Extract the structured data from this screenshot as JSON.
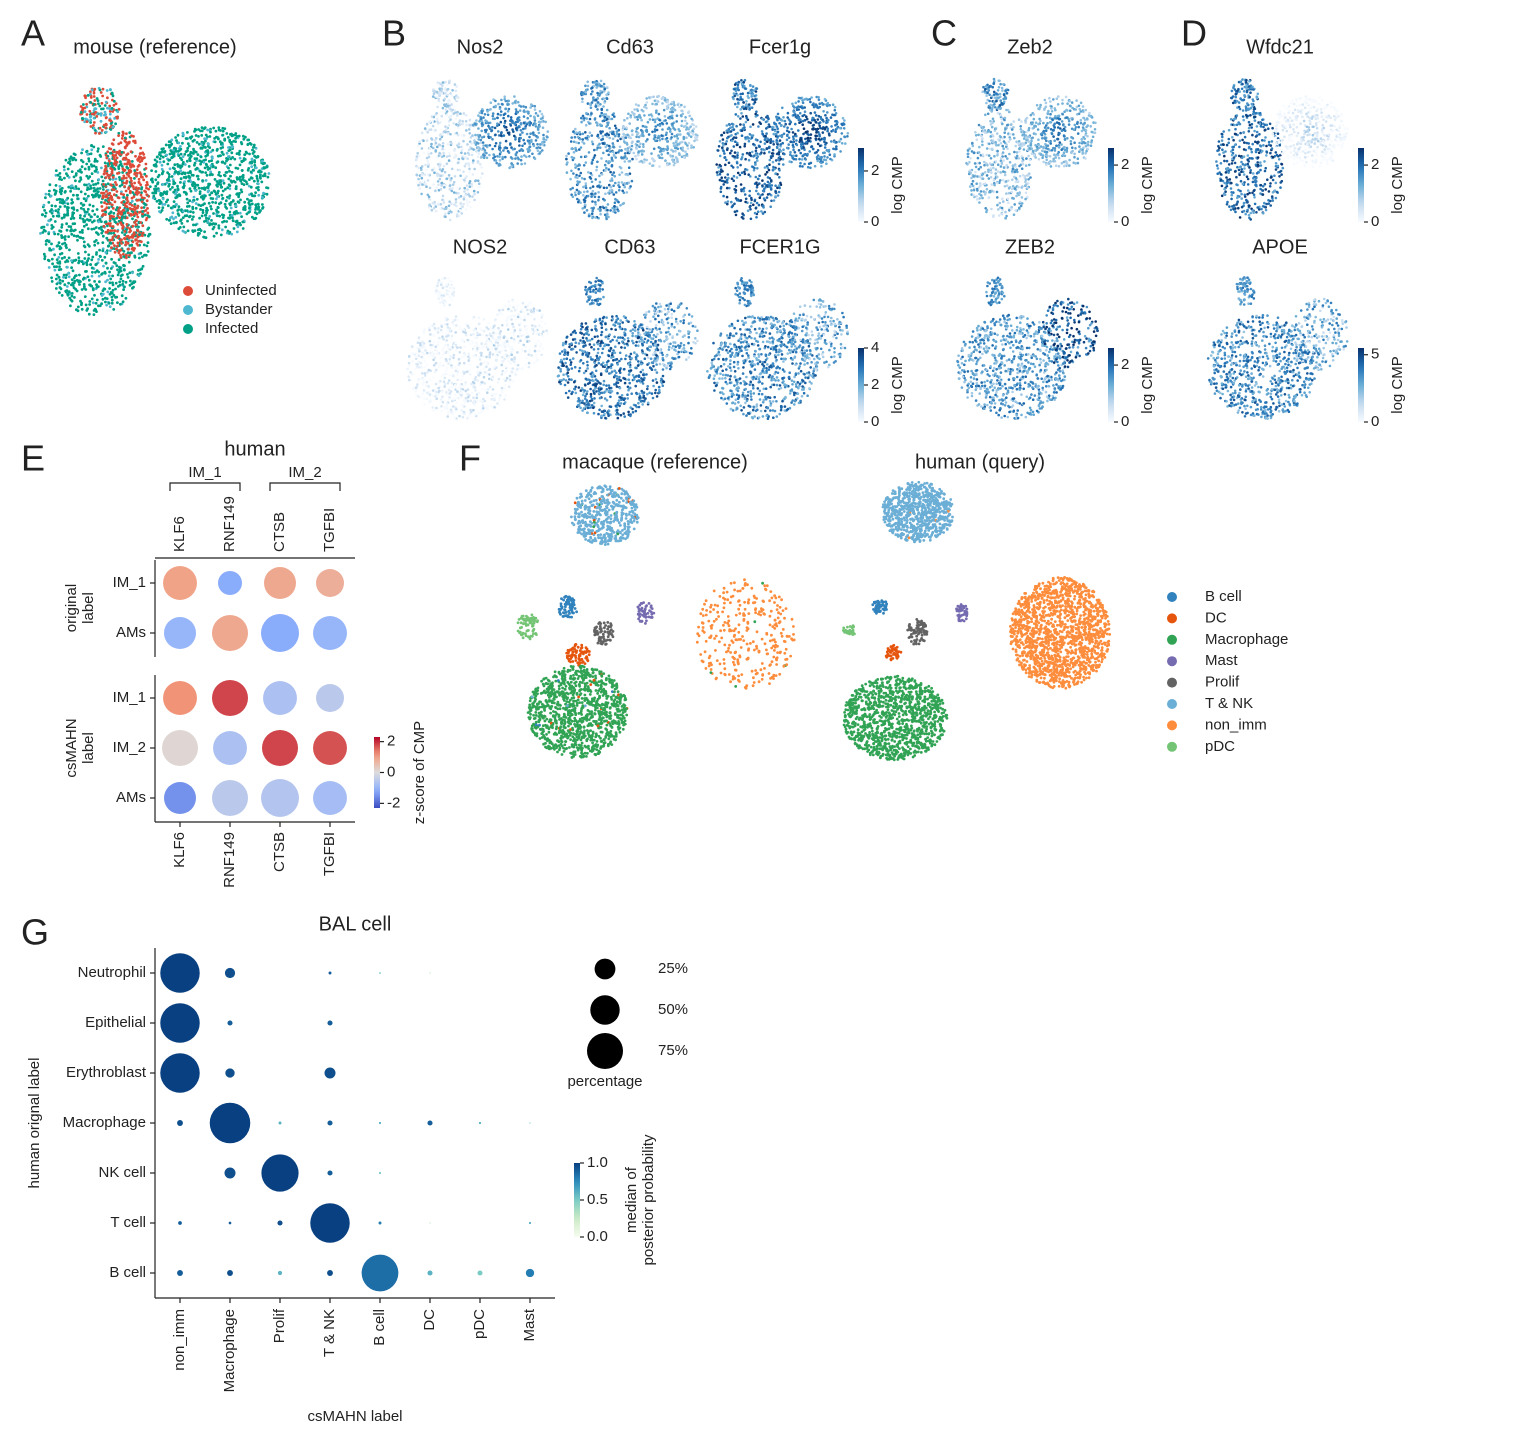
{
  "panel_A": {
    "letter": "A",
    "title": "mouse (reference)",
    "legend": [
      {
        "name": "Uninfected",
        "color": "#dd4b39"
      },
      {
        "name": "Bystander",
        "color": "#4db8d0"
      },
      {
        "name": "Infected",
        "color": "#00a087"
      }
    ]
  },
  "panel_B": {
    "letter": "B",
    "mouse_genes": [
      "Nos2",
      "Cd63",
      "Fcer1g"
    ],
    "human_genes": [
      "NOS2",
      "CD63",
      "FCER1G"
    ],
    "mouse_colorbar": {
      "label": "log CMP",
      "lim": [
        0,
        2.9
      ],
      "ticks": [
        0,
        2
      ]
    },
    "human_colorbar": {
      "label": "log CMP",
      "lim": [
        0,
        4
      ],
      "ticks": [
        0,
        2,
        4
      ]
    }
  },
  "panel_C": {
    "letter": "C",
    "mouse_genes": [
      "Zeb2"
    ],
    "human_genes": [
      "ZEB2"
    ],
    "mouse_colorbar": {
      "label": "log CMP",
      "lim": [
        0,
        2.6
      ],
      "ticks": [
        0,
        2
      ]
    },
    "human_colorbar": {
      "label": "log CMP",
      "lim": [
        0,
        2.6
      ],
      "ticks": [
        0,
        2
      ]
    }
  },
  "panel_D": {
    "letter": "D",
    "mouse_genes": [
      "Wfdc21"
    ],
    "human_genes": [
      "APOE"
    ],
    "mouse_colorbar": {
      "label": "log CMP",
      "lim": [
        0,
        2.6
      ],
      "ticks": [
        0,
        2
      ]
    },
    "human_colorbar": {
      "label": "log CMP",
      "lim": [
        0,
        5.5
      ],
      "ticks": [
        0,
        5
      ]
    }
  },
  "panel_E": {
    "letter": "E",
    "title": "human",
    "gene_groups": [
      "IM_1",
      "IM_2"
    ],
    "genes": [
      "KLF6",
      "RNF149",
      "CTSB",
      "TGFBI"
    ],
    "row_groups": [
      {
        "label": [
          "original",
          "label"
        ],
        "rows": [
          "IM_1",
          "AMs"
        ],
        "zscore": [
          [
            1.0,
            -1.2,
            0.9,
            0.8
          ],
          [
            -1.0,
            0.9,
            -1.2,
            -1.0
          ]
        ],
        "fraction": [
          [
            0.72,
            0.36,
            0.64,
            0.49
          ],
          [
            0.64,
            0.81,
            0.9,
            0.72
          ]
        ]
      },
      {
        "label": [
          "csMAHN",
          "label"
        ],
        "rows": [
          "IM_1",
          "IM_2",
          "AMs"
        ],
        "zscore": [
          [
            1.2,
            1.8,
            -0.7,
            -0.5
          ],
          [
            0.1,
            -0.7,
            1.8,
            1.7
          ],
          [
            -1.5,
            -0.5,
            -0.6,
            -0.8
          ]
        ],
        "fraction": [
          [
            0.72,
            0.81,
            0.72,
            0.49
          ],
          [
            0.81,
            0.72,
            0.81,
            0.72
          ],
          [
            0.64,
            0.81,
            0.9,
            0.72
          ]
        ]
      }
    ],
    "colorbar": {
      "label": "z-score of CMP",
      "lim": [
        -2.3,
        2.3
      ],
      "ticks": [
        -2,
        0,
        2
      ]
    }
  },
  "panel_F": {
    "letter": "F",
    "titles": [
      "macaque (reference)",
      "human (query)"
    ],
    "legend": [
      {
        "name": "B cell",
        "color": "#3182bd"
      },
      {
        "name": "DC",
        "color": "#e6550d"
      },
      {
        "name": "Macrophage",
        "color": "#31a354"
      },
      {
        "name": "Mast",
        "color": "#756bb1"
      },
      {
        "name": "Prolif",
        "color": "#636363"
      },
      {
        "name": "T & NK",
        "color": "#6baed6"
      },
      {
        "name": "non_imm",
        "color": "#fd8d3c"
      },
      {
        "name": "pDC",
        "color": "#74c476"
      }
    ]
  },
  "panel_G": {
    "letter": "G",
    "title": "BAL cell",
    "x_label": "csMAHN label",
    "y_label": "human orignal label",
    "columns": [
      "non_imm",
      "Macrophage",
      "Prolif",
      "T & NK",
      "B cell",
      "DC",
      "pDC",
      "Mast"
    ],
    "rows": [
      "Neutrophil",
      "Epithelial",
      "Erythroblast",
      "Macrophage",
      "NK cell",
      "T cell",
      "B cell"
    ],
    "percentage": [
      [
        90,
        6,
        0,
        0.5,
        0.2,
        0.1,
        0,
        0
      ],
      [
        90,
        1.5,
        0,
        1.5,
        0,
        0,
        0,
        0
      ],
      [
        90,
        5,
        0,
        7,
        0,
        0,
        0,
        0
      ],
      [
        2,
        95,
        0.5,
        1.5,
        0.3,
        1.5,
        0.3,
        0.1
      ],
      [
        0,
        7,
        80,
        1.5,
        0.3,
        0,
        0,
        0
      ],
      [
        0.8,
        0.4,
        1.5,
        90,
        0.5,
        0.1,
        0,
        0.3
      ],
      [
        2,
        2,
        1,
        2,
        78,
        1.5,
        1.5,
        4
      ]
    ],
    "probability": [
      [
        1,
        0.95,
        0,
        0.9,
        0.5,
        0.3,
        0,
        0
      ],
      [
        1,
        0.9,
        0,
        0.9,
        0,
        0,
        0,
        0
      ],
      [
        1,
        0.95,
        0,
        0.95,
        0,
        0,
        0,
        0
      ],
      [
        0.95,
        1,
        0.6,
        0.9,
        0.6,
        0.9,
        0.6,
        0.5
      ],
      [
        0,
        0.95,
        1,
        0.9,
        0.5,
        0,
        0,
        0
      ],
      [
        0.9,
        0.9,
        0.95,
        1,
        0.8,
        0.3,
        0,
        0.6
      ],
      [
        0.9,
        0.95,
        0.6,
        0.95,
        0.85,
        0.6,
        0.5,
        0.8
      ]
    ],
    "size_legend": {
      "title": "percentage",
      "values": [
        {
          "value": 25,
          "label": "25%"
        },
        {
          "value": 50,
          "label": "50%"
        },
        {
          "value": 75,
          "label": "75%"
        }
      ]
    },
    "colorbar": {
      "label": [
        "median of",
        "posterior probability"
      ],
      "lim": [
        0,
        1
      ],
      "ticks": [
        {
          "value": 0,
          "label": "0.0"
        },
        0.5,
        {
          "value": 1,
          "label": "1.0"
        }
      ]
    }
  }
}
